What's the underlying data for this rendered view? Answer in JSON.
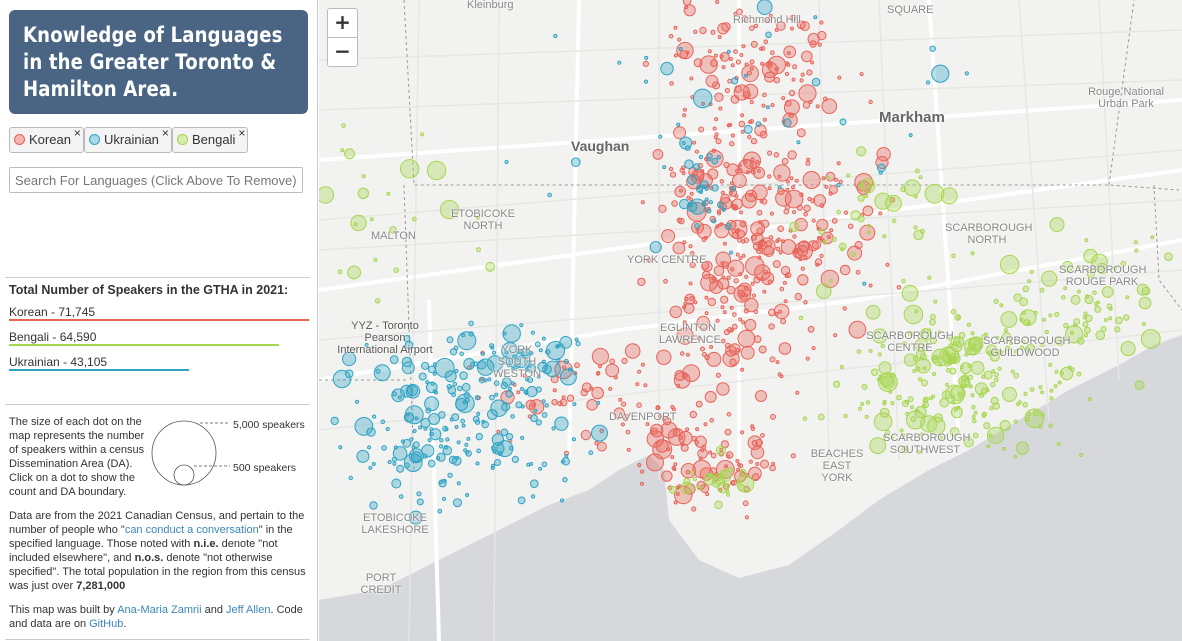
{
  "title": {
    "line1": "Knowledge of Languages",
    "line2": "in the Greater Toronto &",
    "line3": "Hamilton Area."
  },
  "chips": [
    {
      "label": "Korean",
      "color": "#e8635a",
      "remove": "×"
    },
    {
      "label": "Ukrainian",
      "color": "#2fa3c4",
      "remove": "×"
    },
    {
      "label": "Bengali",
      "color": "#a6d64f",
      "remove": "×"
    }
  ],
  "search": {
    "placeholder": "Search For Languages (Click Above To Remove)"
  },
  "totals": {
    "heading": "Total Number of Speakers in the GTHA in 2021:",
    "items": [
      {
        "label": "Korean - 71,745",
        "value": 71745,
        "color": "#e8635a"
      },
      {
        "label": "Bengali - 64,590",
        "value": 64590,
        "color": "#a6d64f"
      },
      {
        "label": "Ukrainian - 43,105",
        "value": 43105,
        "color": "#2fa3c4"
      }
    ]
  },
  "legend": {
    "text": "The size of each dot on the map represents the number of speakers within a census Dissemination Area (DA). Click on a dot to show the count and DA boundary.",
    "large_label": "5,000 speakers",
    "small_label": "500 speakers"
  },
  "census": {
    "t1": "Data are from the 2021 Canadian Census, and pertain to the number of people who \"",
    "link": "can conduct a conversation",
    "t2": "\" in the specified language. Those noted with ",
    "nie": "n.i.e.",
    "t3": " denote \"not included elsewhere\", and ",
    "nos": "n.o.s.",
    "t4": " denote \"not otherwise specified\". The total population in the region from this census was just over ",
    "pop": "7,281,000"
  },
  "credits": {
    "t1": "This map was built by ",
    "author1": "Ana-Maria Zamrii",
    "t2": " and ",
    "author2": "Jeff Allen",
    "t3": ". Code and data are on ",
    "github": "GitHub",
    "t4": "."
  },
  "map": {
    "zoom_in": "+",
    "zoom_out": "−",
    "places": {
      "kleinburg": "Kleinburg",
      "richmond_hill": "Richmond Hill",
      "square": "SQUARE",
      "markham": "Markham",
      "rouge": "Rouge National Urban Park",
      "vaughan": "Vaughan",
      "etobicoke_north": "ETOBICOKE NORTH",
      "malton": "MALTON",
      "york_centre": "YORK CENTRE",
      "scarborough_north": "SCARBOROUGH NORTH",
      "scarborough_rouge": "SCARBOROUGH ROUGE PARK",
      "yyz": "YYZ - Toronto Pearson International Airport",
      "eglinton": "EGLINTON LAWRENCE",
      "scarborough_centre": "SCARBOROUGH CENTRE",
      "scarborough_guildwood": "SCARBOROUGH GUILDWOOD",
      "york_south": "YORK SOUTH WESTON",
      "davenport": "DAVENPORT",
      "east_york": "BEACHES EAST YORK",
      "scarborough_sw": "SCARBOROUGH SOUTHWEST",
      "etobicoke_lake": "ETOBICOKE LAKESHORE",
      "port_credit": "PORT CREDIT"
    }
  }
}
